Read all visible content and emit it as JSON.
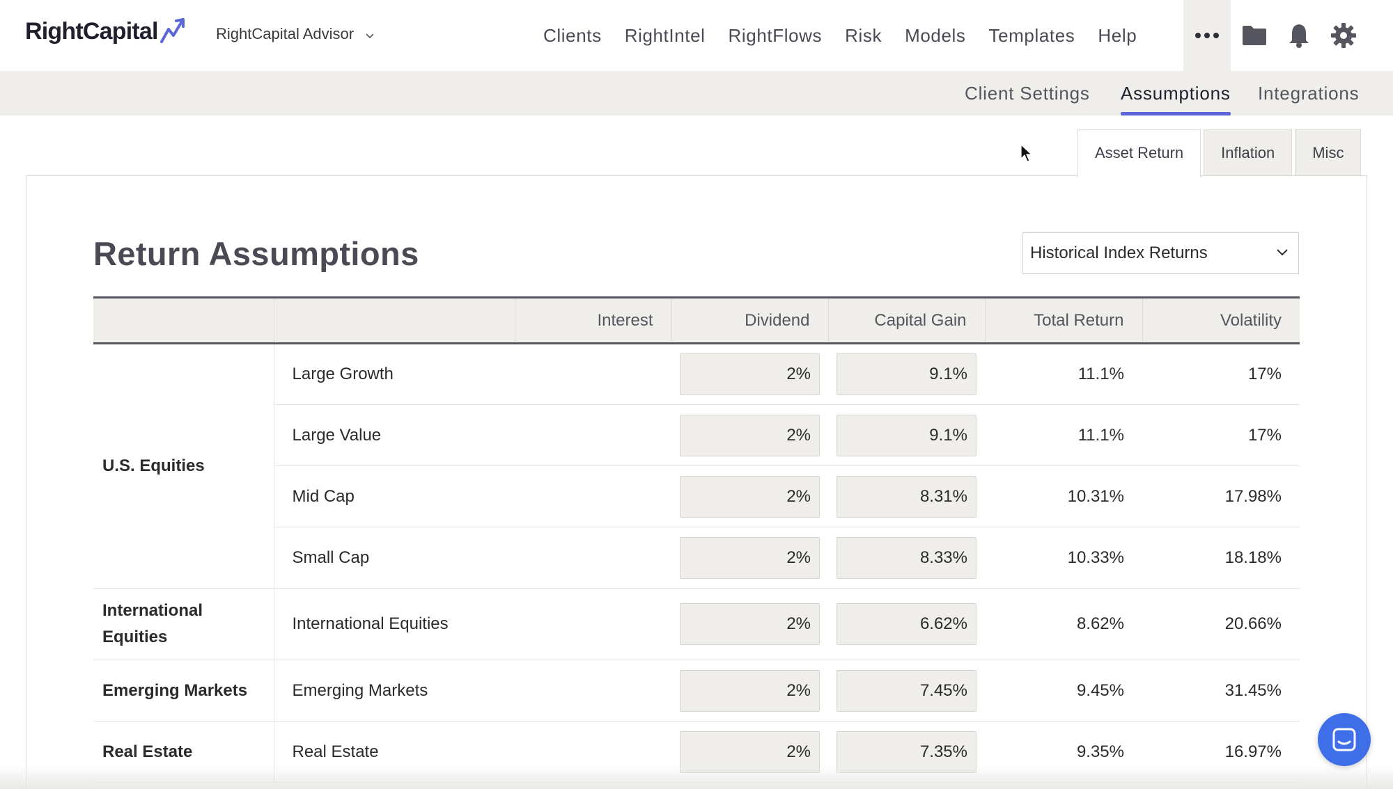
{
  "header": {
    "logo_text": "RightCapital",
    "advisor_name": "RightCapital Advisor",
    "nav": [
      "Clients",
      "RightIntel",
      "RightFlows",
      "Risk",
      "Models",
      "Templates",
      "Help"
    ]
  },
  "subnav": {
    "tabs": [
      "Client Settings",
      "Assumptions",
      "Integrations"
    ],
    "active": "Assumptions"
  },
  "section_tabs": {
    "tabs": [
      "Asset Return",
      "Inflation",
      "Misc"
    ],
    "active": "Asset Return"
  },
  "main": {
    "title": "Return Assumptions",
    "source_select": "Historical Index Returns",
    "columns": [
      "Interest",
      "Dividend",
      "Capital Gain",
      "Total Return",
      "Volatility"
    ],
    "groups": [
      {
        "category": "U.S. Equities",
        "rows": [
          {
            "name": "Large Growth",
            "interest": "",
            "dividend": "2%",
            "capital_gain": "9.1%",
            "total_return": "11.1%",
            "volatility": "17%"
          },
          {
            "name": "Large Value",
            "interest": "",
            "dividend": "2%",
            "capital_gain": "9.1%",
            "total_return": "11.1%",
            "volatility": "17%"
          },
          {
            "name": "Mid Cap",
            "interest": "",
            "dividend": "2%",
            "capital_gain": "8.31%",
            "total_return": "10.31%",
            "volatility": "17.98%"
          },
          {
            "name": "Small Cap",
            "interest": "",
            "dividend": "2%",
            "capital_gain": "8.33%",
            "total_return": "10.33%",
            "volatility": "18.18%"
          }
        ]
      },
      {
        "category": "International Equities",
        "rows": [
          {
            "name": "International Equities",
            "interest": "",
            "dividend": "2%",
            "capital_gain": "6.62%",
            "total_return": "8.62%",
            "volatility": "20.66%"
          }
        ]
      },
      {
        "category": "Emerging Markets",
        "rows": [
          {
            "name": "Emerging Markets",
            "interest": "",
            "dividend": "2%",
            "capital_gain": "7.45%",
            "total_return": "9.45%",
            "volatility": "31.45%"
          }
        ]
      },
      {
        "category": "Real Estate",
        "rows": [
          {
            "name": "Real Estate",
            "interest": "",
            "dividend": "2%",
            "capital_gain": "7.35%",
            "total_return": "9.35%",
            "volatility": "16.97%"
          }
        ]
      }
    ]
  },
  "colors": {
    "accent": "#5a67d8",
    "chat_button": "#3e6fe8",
    "subnav_bg": "#efeeea"
  },
  "icons": {
    "more": "more-horizontal-icon",
    "folder": "folder-icon",
    "bell": "bell-icon",
    "settings": "gear-icon",
    "chat": "chat-icon"
  }
}
